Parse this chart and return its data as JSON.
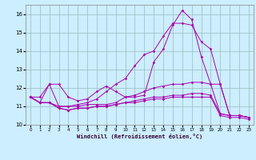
{
  "xlabel": "Windchill (Refroidissement éolien,°C)",
  "x": [
    0,
    1,
    2,
    3,
    4,
    5,
    6,
    7,
    8,
    9,
    10,
    11,
    12,
    13,
    14,
    15,
    16,
    17,
    18,
    19,
    20,
    21,
    22,
    23
  ],
  "lines": [
    [
      11.5,
      11.5,
      12.2,
      12.2,
      11.5,
      11.3,
      11.4,
      11.8,
      12.1,
      11.8,
      11.5,
      11.5,
      11.6,
      13.4,
      14.1,
      15.4,
      16.2,
      15.7,
      13.7,
      12.2,
      12.2,
      10.5,
      10.5,
      10.4
    ],
    [
      11.5,
      11.2,
      12.2,
      11.0,
      11.0,
      11.1,
      11.2,
      11.4,
      11.8,
      12.2,
      12.5,
      13.2,
      13.8,
      14.0,
      14.8,
      15.5,
      15.5,
      15.4,
      14.5,
      14.1,
      12.2,
      10.5,
      10.5,
      10.4
    ],
    [
      11.5,
      11.2,
      11.2,
      11.0,
      11.0,
      11.0,
      11.1,
      11.1,
      11.1,
      11.2,
      11.5,
      11.6,
      11.8,
      12.0,
      12.1,
      12.2,
      12.2,
      12.3,
      12.3,
      12.2,
      10.6,
      10.5,
      10.5,
      10.4
    ],
    [
      11.5,
      11.2,
      11.2,
      10.9,
      10.8,
      10.9,
      10.9,
      11.0,
      11.0,
      11.1,
      11.2,
      11.3,
      11.4,
      11.5,
      11.5,
      11.6,
      11.6,
      11.7,
      11.7,
      11.6,
      10.6,
      10.5,
      10.5,
      10.4
    ],
    [
      11.5,
      11.2,
      11.2,
      10.9,
      10.8,
      10.9,
      10.9,
      11.0,
      11.0,
      11.1,
      11.2,
      11.2,
      11.3,
      11.4,
      11.4,
      11.5,
      11.5,
      11.5,
      11.5,
      11.5,
      10.5,
      10.4,
      10.4,
      10.3
    ]
  ],
  "line_color": "#aa00aa",
  "marker": "D",
  "markersize": 1.8,
  "bg_color": "#cceeff",
  "grid_color": "#99bbbb",
  "ylim": [
    10.0,
    16.5
  ],
  "yticks": [
    10,
    11,
    12,
    13,
    14,
    15,
    16
  ],
  "xlim": [
    -0.5,
    23.5
  ],
  "xticks": [
    0,
    1,
    2,
    3,
    4,
    5,
    6,
    7,
    8,
    9,
    10,
    11,
    12,
    13,
    14,
    15,
    16,
    17,
    18,
    19,
    20,
    21,
    22,
    23
  ]
}
